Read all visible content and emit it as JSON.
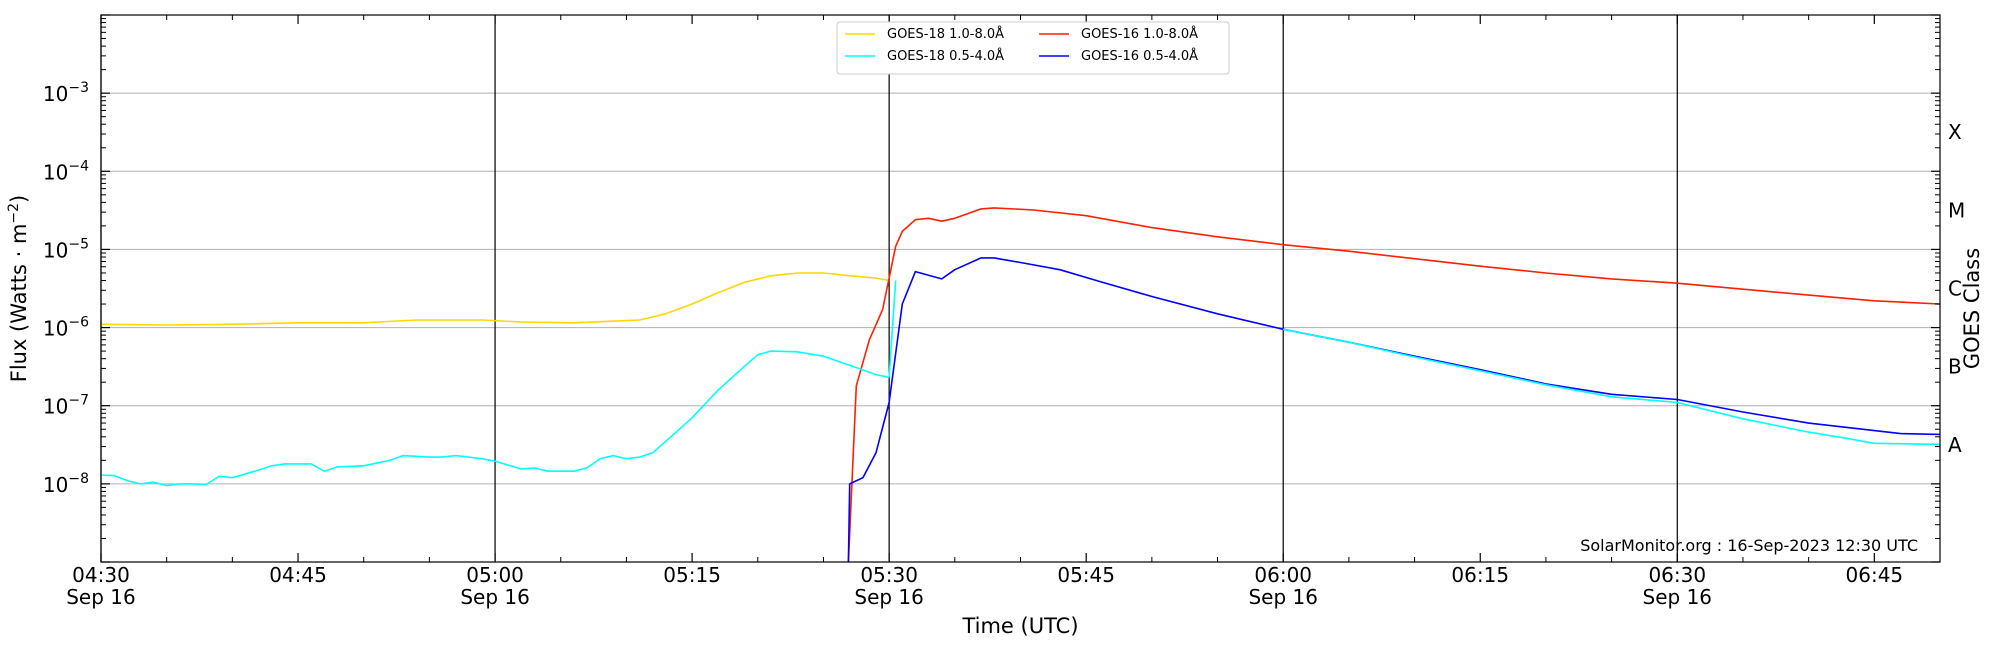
{
  "chart_data": {
    "type": "line",
    "xlabel": "Time (UTC)",
    "ylabel": "Flux (Watts · m⁻²)",
    "y_scale": "log",
    "ylim": [
      1e-09,
      0.01
    ],
    "xlim": [
      "04:30",
      "06:50"
    ],
    "grid": "horizontal at each decade; vertical lines every 30 min",
    "legend_placement": "top-center",
    "credit": "SolarMonitor.org : 16-Sep-2023 12:30 UTC",
    "x_ticks": [
      {
        "t": "04:30",
        "label": "04:30",
        "date": "Sep 16"
      },
      {
        "t": "04:45",
        "label": "04:45",
        "date": ""
      },
      {
        "t": "05:00",
        "label": "05:00",
        "date": "Sep 16"
      },
      {
        "t": "05:15",
        "label": "05:15",
        "date": ""
      },
      {
        "t": "05:30",
        "label": "05:30",
        "date": "Sep 16"
      },
      {
        "t": "05:45",
        "label": "05:45",
        "date": ""
      },
      {
        "t": "06:00",
        "label": "06:00",
        "date": "Sep 16"
      },
      {
        "t": "06:15",
        "label": "06:15",
        "date": ""
      },
      {
        "t": "06:30",
        "label": "06:30",
        "date": "Sep 16"
      },
      {
        "t": "06:45",
        "label": "06:45",
        "date": ""
      }
    ],
    "y_ticks": [
      {
        "exp": -8,
        "label": "10",
        "sup": "−8"
      },
      {
        "exp": -7,
        "label": "10",
        "sup": "−7"
      },
      {
        "exp": -6,
        "label": "10",
        "sup": "−6"
      },
      {
        "exp": -5,
        "label": "10",
        "sup": "−5"
      },
      {
        "exp": -4,
        "label": "10",
        "sup": "−4"
      },
      {
        "exp": -3,
        "label": "10",
        "sup": "−3"
      }
    ],
    "right_axis_title": "GOES Class",
    "goes_classes": [
      {
        "label": "A",
        "exp": -7.5
      },
      {
        "label": "B",
        "exp": -6.5
      },
      {
        "label": "C",
        "exp": -5.5
      },
      {
        "label": "M",
        "exp": -4.5
      },
      {
        "label": "X",
        "exp": -3.5
      }
    ],
    "series": [
      {
        "name": "GOES-18 1.0-8.0Å",
        "color": "#ffd700",
        "points": [
          [
            "04:30",
            1.1e-06
          ],
          [
            "04:35",
            1.08e-06
          ],
          [
            "04:40",
            1.1e-06
          ],
          [
            "04:45",
            1.15e-06
          ],
          [
            "04:50",
            1.15e-06
          ],
          [
            "04:54",
            1.25e-06
          ],
          [
            "04:59",
            1.25e-06
          ],
          [
            "05:02",
            1.18e-06
          ],
          [
            "05:06",
            1.15e-06
          ],
          [
            "05:11",
            1.25e-06
          ],
          [
            "05:13",
            1.5e-06
          ],
          [
            "05:15",
            2e-06
          ],
          [
            "05:17",
            2.8e-06
          ],
          [
            "05:19",
            3.8e-06
          ],
          [
            "05:21",
            4.6e-06
          ],
          [
            "05:23",
            5e-06
          ],
          [
            "05:25",
            5e-06
          ],
          [
            "05:27",
            4.6e-06
          ],
          [
            "05:29",
            4.3e-06
          ],
          [
            "05:30",
            4e-06
          ]
        ]
      },
      {
        "name": "GOES-16 1.0-8.0Å",
        "color": "#ff2000",
        "points": [
          [
            "05:26.9",
            1e-09
          ],
          [
            "05:27.5",
            1.8e-07
          ],
          [
            "05:28.5",
            7e-07
          ],
          [
            "05:29.5",
            1.7e-06
          ],
          [
            "05:30.5",
            1.1e-05
          ],
          [
            "05:31",
            1.7e-05
          ],
          [
            "05:32",
            2.4e-05
          ],
          [
            "05:33",
            2.5e-05
          ],
          [
            "05:34",
            2.3e-05
          ],
          [
            "05:35",
            2.5e-05
          ],
          [
            "05:37",
            3.3e-05
          ],
          [
            "05:38",
            3.4e-05
          ],
          [
            "05:41",
            3.2e-05
          ],
          [
            "05:45",
            2.7e-05
          ],
          [
            "05:50",
            1.9e-05
          ],
          [
            "05:55",
            1.45e-05
          ],
          [
            "06:00",
            1.15e-05
          ],
          [
            "06:05",
            9.5e-06
          ],
          [
            "06:10",
            7.6e-06
          ],
          [
            "06:15",
            6.1e-06
          ],
          [
            "06:20",
            5e-06
          ],
          [
            "06:25",
            4.2e-06
          ],
          [
            "06:30",
            3.7e-06
          ],
          [
            "06:35",
            3.1e-06
          ],
          [
            "06:40",
            2.6e-06
          ],
          [
            "06:45",
            2.2e-06
          ],
          [
            "06:50",
            2e-06
          ]
        ]
      },
      {
        "name": "GOES-18 0.5-4.0Å",
        "color": "#00ffff",
        "points": [
          [
            "04:30",
            1.3e-08
          ],
          [
            "04:31",
            1.28e-08
          ],
          [
            "04:32",
            1.1e-08
          ],
          [
            "04:33",
            1e-08
          ],
          [
            "04:34",
            1.05e-08
          ],
          [
            "04:35",
            9.5e-09
          ],
          [
            "04:36",
            1e-08
          ],
          [
            "04:37",
            1e-08
          ],
          [
            "04:38",
            9.8e-09
          ],
          [
            "04:39",
            1.25e-08
          ],
          [
            "04:40",
            1.2e-08
          ],
          [
            "04:42",
            1.5e-08
          ],
          [
            "04:43",
            1.7e-08
          ],
          [
            "04:44",
            1.8e-08
          ],
          [
            "04:46",
            1.8e-08
          ],
          [
            "04:47",
            1.45e-08
          ],
          [
            "04:48",
            1.65e-08
          ],
          [
            "04:50",
            1.7e-08
          ],
          [
            "04:52",
            2e-08
          ],
          [
            "04:53",
            2.3e-08
          ],
          [
            "04:55",
            2.2e-08
          ],
          [
            "04:56",
            2.2e-08
          ],
          [
            "04:57",
            2.3e-08
          ],
          [
            "04:59",
            2.1e-08
          ],
          [
            "05:00",
            1.95e-08
          ],
          [
            "05:02",
            1.55e-08
          ],
          [
            "05:03",
            1.6e-08
          ],
          [
            "05:04",
            1.45e-08
          ],
          [
            "05:06",
            1.45e-08
          ],
          [
            "05:07",
            1.6e-08
          ],
          [
            "05:08",
            2.1e-08
          ],
          [
            "05:09",
            2.3e-08
          ],
          [
            "05:10",
            2.1e-08
          ],
          [
            "05:11",
            2.2e-08
          ],
          [
            "05:12",
            2.5e-08
          ],
          [
            "05:13",
            3.5e-08
          ],
          [
            "05:15",
            7e-08
          ],
          [
            "05:17",
            1.6e-07
          ],
          [
            "05:19",
            3.2e-07
          ],
          [
            "05:20",
            4.5e-07
          ],
          [
            "05:21",
            5e-07
          ],
          [
            "05:23",
            4.9e-07
          ],
          [
            "05:25",
            4.3e-07
          ],
          [
            "05:27",
            3.3e-07
          ],
          [
            "05:29",
            2.5e-07
          ],
          [
            "05:30",
            2.3e-07
          ]
        ]
      },
      {
        "name": "GOES-16 0.5-4.0Å",
        "color": "#0000ff",
        "points": [
          [
            "05:26.9",
            1e-09
          ],
          [
            "05:27",
            1e-08
          ],
          [
            "05:28",
            1.2e-08
          ],
          [
            "05:29",
            2.5e-08
          ],
          [
            "05:30",
            1.1e-07
          ],
          [
            "05:31",
            2e-06
          ],
          [
            "05:32",
            5.2e-06
          ],
          [
            "05:34",
            4.2e-06
          ],
          [
            "05:35",
            5.5e-06
          ],
          [
            "05:37",
            7.8e-06
          ],
          [
            "05:38",
            7.8e-06
          ],
          [
            "05:40",
            6.8e-06
          ],
          [
            "05:43",
            5.5e-06
          ],
          [
            "05:46",
            3.9e-06
          ],
          [
            "05:50",
            2.5e-06
          ],
          [
            "05:55",
            1.5e-06
          ],
          [
            "06:00",
            9.5e-07
          ],
          [
            "06:05",
            6.5e-07
          ],
          [
            "06:10",
            4.3e-07
          ],
          [
            "06:15",
            2.9e-07
          ],
          [
            "06:20",
            1.9e-07
          ],
          [
            "06:25",
            1.4e-07
          ],
          [
            "06:30",
            1.2e-07
          ],
          [
            "06:35",
            8.3e-08
          ],
          [
            "06:40",
            6e-08
          ],
          [
            "06:45",
            4.8e-08
          ],
          [
            "06:47",
            4.4e-08
          ],
          [
            "06:50",
            4.3e-08
          ]
        ]
      },
      {
        "name": "",
        "color": "#00ffff",
        "points": [
          [
            "05:30",
            2.3e-07
          ],
          [
            "05:30.5",
            4e-06
          ]
        ]
      },
      {
        "name": "",
        "color": "#00ffff",
        "points": [
          [
            "06:00",
            9.5e-07
          ],
          [
            "06:05",
            6.5e-07
          ],
          [
            "06:10",
            4.2e-07
          ],
          [
            "06:15",
            2.8e-07
          ],
          [
            "06:20",
            1.85e-07
          ],
          [
            "06:25",
            1.3e-07
          ],
          [
            "06:30",
            1.1e-07
          ],
          [
            "06:35",
            6.8e-08
          ],
          [
            "06:40",
            4.6e-08
          ],
          [
            "06:43",
            3.8e-08
          ],
          [
            "06:45",
            3.3e-08
          ],
          [
            "06:50",
            3.2e-08
          ]
        ]
      }
    ]
  }
}
